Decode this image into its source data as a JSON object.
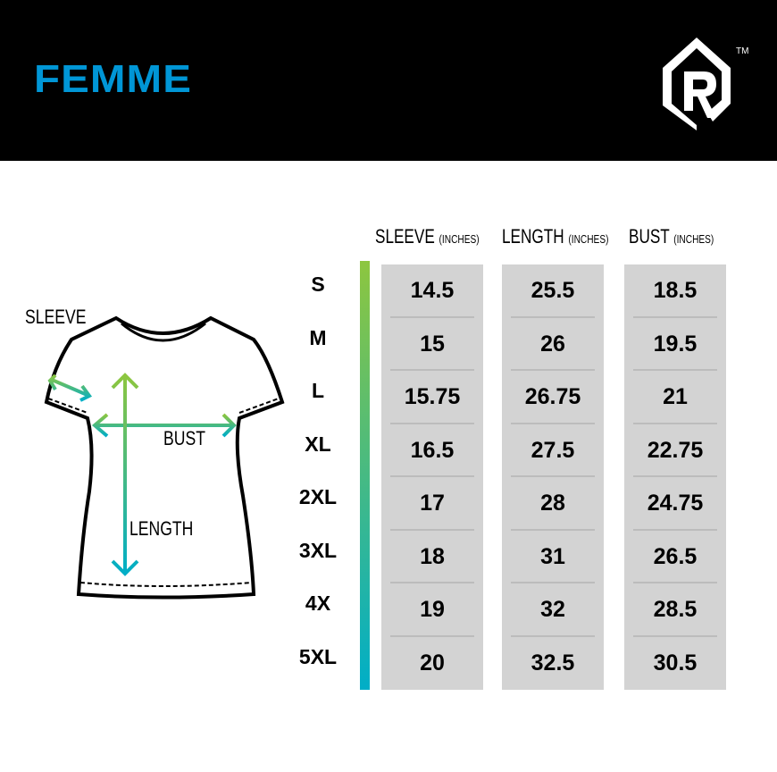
{
  "header": {
    "title": "FEMME",
    "logo_text": "R",
    "trademark": "TM"
  },
  "diagram": {
    "sleeve_label": "SLEEVE",
    "bust_label": "BUST",
    "length_label": "LENGTH"
  },
  "table": {
    "unit": "(INCHES)",
    "columns": [
      "SLEEVE",
      "LENGTH",
      "BUST"
    ],
    "sizes": [
      "S",
      "M",
      "L",
      "XL",
      "2XL",
      "3XL",
      "4X",
      "5XL"
    ],
    "sleeve": [
      "14.5",
      "15",
      "15.75",
      "16.5",
      "17",
      "18",
      "19",
      "20"
    ],
    "length": [
      "25.5",
      "26",
      "26.75",
      "27.5",
      "28",
      "31",
      "32",
      "32.5"
    ],
    "bust": [
      "18.5",
      "19.5",
      "21",
      "22.75",
      "24.75",
      "26.5",
      "28.5",
      "30.5"
    ]
  },
  "colors": {
    "title": "#0096d6",
    "gradient_top": "#8dc63f",
    "gradient_bottom": "#00aec7",
    "cell_bg": "#d3d3d3"
  }
}
